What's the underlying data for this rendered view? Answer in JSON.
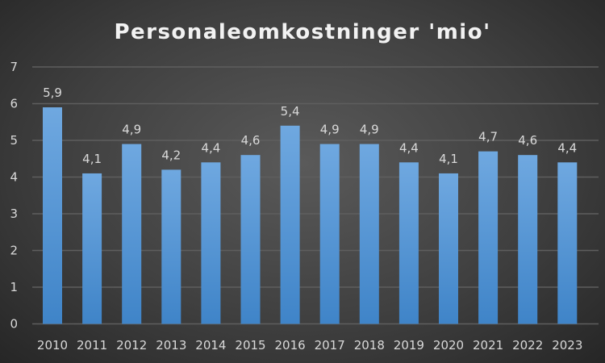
{
  "chart_data": {
    "type": "bar",
    "title": "Personaleomkostninger 'mio'",
    "xlabel": "",
    "ylabel": "",
    "categories": [
      "2010",
      "2011",
      "2012",
      "2013",
      "2014",
      "2015",
      "2016",
      "2017",
      "2018",
      "2019",
      "2020",
      "2021",
      "2022",
      "2023"
    ],
    "values": [
      5.9,
      4.1,
      4.9,
      4.2,
      4.4,
      4.6,
      5.4,
      4.9,
      4.9,
      4.4,
      4.1,
      4.7,
      4.6,
      4.4
    ],
    "data_labels": [
      "5,9",
      "4,1",
      "4,9",
      "4,2",
      "4,4",
      "4,6",
      "5,4",
      "4,9",
      "4,9",
      "4,4",
      "4,1",
      "4,7",
      "4,6",
      "4,4"
    ],
    "ylim": [
      0,
      7
    ],
    "yticks": [
      "0",
      "1",
      "2",
      "3",
      "4",
      "5",
      "6",
      "7"
    ],
    "grid": true,
    "legend": "none",
    "colors": {
      "bar_top": "#6fa8e0",
      "bar_bottom": "#3f84c8",
      "grid": "#5e5e5e",
      "text": "#d9d9d9"
    }
  }
}
